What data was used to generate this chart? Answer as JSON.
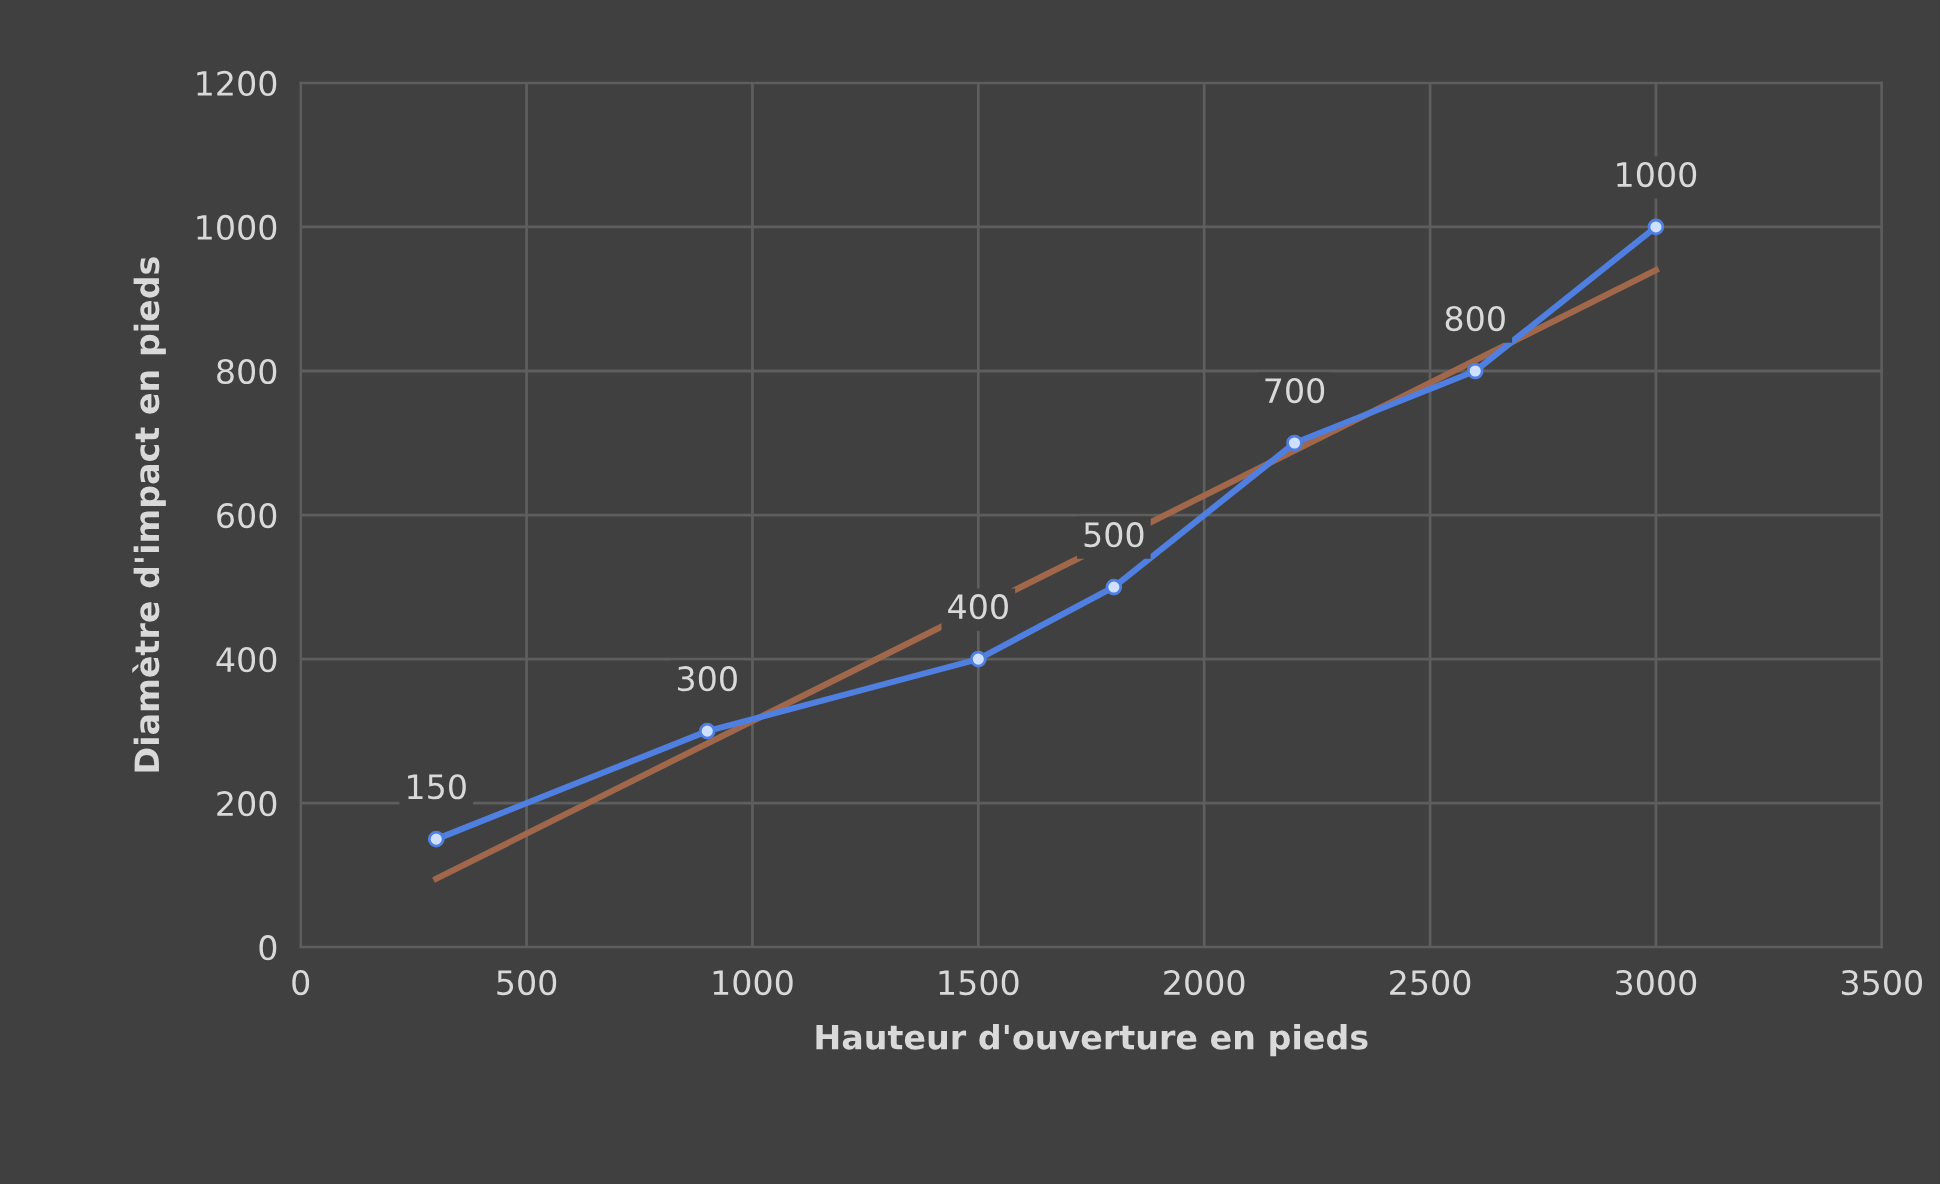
{
  "chart_data": {
    "type": "line",
    "xlabel": "Hauteur d'ouverture en pieds",
    "ylabel": "Diamètre d'impact en pieds",
    "xlim": [
      0,
      3500
    ],
    "xticks": [
      0,
      500,
      1000,
      1500,
      2000,
      2500,
      3000,
      3500
    ],
    "ylim": [
      0,
      1200
    ],
    "yticks": [
      0,
      200,
      400,
      600,
      800,
      1000,
      1200
    ],
    "grid": true,
    "series": [
      {
        "color": "#4f7fe0",
        "x": [
          300,
          900,
          1500,
          1800,
          2200,
          2600,
          3000
        ],
        "values": [
          150,
          300,
          400,
          500,
          700,
          800,
          1000
        ],
        "marker": "circle",
        "value_labels": [
          "150",
          "300",
          "400",
          "500",
          "700",
          "800",
          "1000"
        ]
      },
      {
        "color": "#a0674b",
        "x": [
          300,
          3000
        ],
        "values": [
          95,
          940
        ],
        "marker": "none"
      }
    ]
  }
}
